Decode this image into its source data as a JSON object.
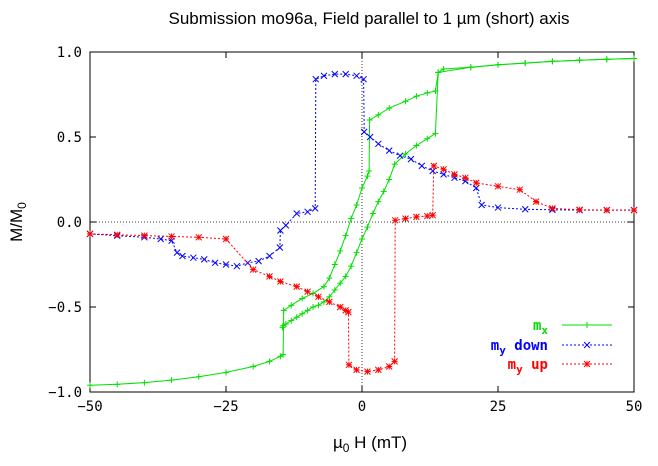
{
  "chart_data": {
    "type": "line",
    "title": "Submission mo96a, Field parallel to 1 µm (short) axis",
    "xlabel_prefix": "µ",
    "xlabel_sub": "0",
    "xlabel_rest": " H (mT)",
    "ylabel_main": "M/M",
    "ylabel_sub": "0",
    "xlim": [
      -50,
      50
    ],
    "ylim": [
      -1.0,
      1.0
    ],
    "xticks": [
      -50,
      -25,
      0,
      25,
      50
    ],
    "xtick_labels": [
      "−50",
      "−25",
      "0",
      "25",
      "50"
    ],
    "yticks": [
      -1.0,
      -0.5,
      0.0,
      0.5,
      1.0
    ],
    "ytick_labels": [
      "−1.0",
      "−0.5",
      "0.0",
      "0.5",
      "1.0"
    ],
    "legend_position": "bottom-right",
    "series": [
      {
        "name": "mx",
        "legend_main": "m",
        "legend_sub": "x",
        "color": "#00e000",
        "marker": "plus",
        "branches": [
          [
            [
              -50,
              -0.96
            ],
            [
              -45,
              -0.955
            ],
            [
              -40,
              -0.945
            ],
            [
              -35,
              -0.93
            ],
            [
              -30,
              -0.91
            ],
            [
              -25,
              -0.885
            ],
            [
              -20,
              -0.85
            ],
            [
              -17,
              -0.82
            ],
            [
              -15,
              -0.79
            ],
            [
              -14.5,
              -0.78
            ],
            [
              -14.4,
              -0.52
            ],
            [
              -13,
              -0.49
            ],
            [
              -11,
              -0.45
            ],
            [
              -9,
              -0.42
            ],
            [
              -7,
              -0.38
            ],
            [
              -6,
              -0.33
            ],
            [
              -5,
              -0.25
            ],
            [
              -4,
              -0.17
            ],
            [
              -3,
              -0.08
            ],
            [
              -2,
              0.02
            ],
            [
              -1,
              0.1
            ],
            [
              0,
              0.2
            ],
            [
              1,
              0.27
            ],
            [
              1.3,
              0.3
            ],
            [
              1.4,
              0.6
            ],
            [
              3,
              0.63
            ],
            [
              5,
              0.67
            ],
            [
              8,
              0.71
            ],
            [
              10,
              0.74
            ],
            [
              12,
              0.76
            ],
            [
              13.5,
              0.77
            ],
            [
              14,
              0.88
            ],
            [
              20,
              0.91
            ],
            [
              25,
              0.925
            ],
            [
              30,
              0.935
            ],
            [
              35,
              0.945
            ],
            [
              40,
              0.952
            ],
            [
              45,
              0.957
            ],
            [
              50,
              0.962
            ]
          ],
          [
            [
              50,
              0.962
            ],
            [
              45,
              0.957
            ],
            [
              40,
              0.952
            ],
            [
              35,
              0.945
            ],
            [
              30,
              0.935
            ],
            [
              25,
              0.925
            ],
            [
              20,
              0.91
            ],
            [
              15,
              0.9
            ],
            [
              14,
              0.88
            ],
            [
              13.5,
              0.52
            ],
            [
              12,
              0.49
            ],
            [
              10,
              0.45
            ],
            [
              8,
              0.4
            ],
            [
              6,
              0.34
            ],
            [
              5,
              0.25
            ],
            [
              4,
              0.18
            ],
            [
              3,
              0.12
            ],
            [
              2,
              0.05
            ],
            [
              1,
              -0.03
            ],
            [
              0,
              -0.1
            ],
            [
              -1,
              -0.18
            ],
            [
              -2,
              -0.26
            ],
            [
              -3,
              -0.32
            ],
            [
              -4,
              -0.36
            ],
            [
              -5,
              -0.4
            ],
            [
              -6,
              -0.44
            ],
            [
              -7,
              -0.47
            ],
            [
              -8,
              -0.49
            ],
            [
              -9,
              -0.5
            ],
            [
              -10,
              -0.52
            ],
            [
              -11,
              -0.54
            ],
            [
              -12,
              -0.56
            ],
            [
              -13,
              -0.58
            ],
            [
              -14,
              -0.6
            ],
            [
              -14.5,
              -0.61
            ],
            [
              -14.6,
              -0.62
            ]
          ]
        ]
      },
      {
        "name": "my down",
        "legend_main": "m",
        "legend_sub": "y",
        "legend_rest": " down",
        "color": "#0000ff",
        "marker": "x",
        "branches": [
          [
            [
              50,
              0.07
            ],
            [
              45,
              0.07
            ],
            [
              40,
              0.07
            ],
            [
              35,
              0.072
            ],
            [
              30,
              0.075
            ],
            [
              25,
              0.085
            ],
            [
              22,
              0.1
            ],
            [
              21,
              0.2
            ],
            [
              19,
              0.24
            ],
            [
              17,
              0.26
            ],
            [
              15,
              0.28
            ],
            [
              13,
              0.3
            ],
            [
              11,
              0.33
            ],
            [
              9,
              0.37
            ],
            [
              7,
              0.39
            ],
            [
              5,
              0.42
            ],
            [
              3,
              0.46
            ],
            [
              1.5,
              0.5
            ],
            [
              0.4,
              0.53
            ],
            [
              0.3,
              0.84
            ],
            [
              -1,
              0.86
            ],
            [
              -3,
              0.87
            ],
            [
              -5,
              0.87
            ],
            [
              -7,
              0.86
            ],
            [
              -8.5,
              0.84
            ],
            [
              -8.6,
              0.08
            ],
            [
              -10,
              0.06
            ],
            [
              -12,
              0.05
            ],
            [
              -14,
              -0.02
            ],
            [
              -15,
              -0.05
            ],
            [
              -15.1,
              -0.15
            ],
            [
              -17,
              -0.2
            ],
            [
              -19,
              -0.23
            ],
            [
              -21,
              -0.24
            ],
            [
              -23,
              -0.26
            ],
            [
              -25,
              -0.25
            ],
            [
              -27,
              -0.24
            ],
            [
              -29,
              -0.22
            ],
            [
              -31,
              -0.21
            ],
            [
              -33,
              -0.2
            ],
            [
              -34,
              -0.18
            ],
            [
              -35,
              -0.11
            ],
            [
              -37,
              -0.1
            ],
            [
              -40,
              -0.09
            ],
            [
              -45,
              -0.08
            ],
            [
              -50,
              -0.07
            ]
          ]
        ]
      },
      {
        "name": "my up",
        "legend_main": "m",
        "legend_sub": "y",
        "legend_rest": " up",
        "color": "#ff0000",
        "marker": "star",
        "branches": [
          [
            [
              -50,
              -0.07
            ],
            [
              -45,
              -0.075
            ],
            [
              -40,
              -0.08
            ],
            [
              -35,
              -0.085
            ],
            [
              -30,
              -0.09
            ],
            [
              -25,
              -0.1
            ],
            [
              -20,
              -0.28
            ],
            [
              -17,
              -0.32
            ],
            [
              -15,
              -0.35
            ],
            [
              -12,
              -0.38
            ],
            [
              -10,
              -0.41
            ],
            [
              -8,
              -0.44
            ],
            [
              -6,
              -0.47
            ],
            [
              -4,
              -0.5
            ],
            [
              -3,
              -0.52
            ],
            [
              -2.5,
              -0.53
            ],
            [
              -2.4,
              -0.84
            ],
            [
              -1,
              -0.87
            ],
            [
              1,
              -0.88
            ],
            [
              3,
              -0.87
            ],
            [
              5,
              -0.85
            ],
            [
              6,
              -0.82
            ],
            [
              6.1,
              0.01
            ],
            [
              8,
              0.02
            ],
            [
              10,
              0.03
            ],
            [
              12,
              0.035
            ],
            [
              13,
              0.04
            ],
            [
              13.2,
              0.33
            ],
            [
              15,
              0.31
            ],
            [
              17,
              0.28
            ],
            [
              19,
              0.26
            ],
            [
              21,
              0.23
            ],
            [
              25,
              0.21
            ],
            [
              29,
              0.19
            ],
            [
              32,
              0.12
            ],
            [
              35,
              0.08
            ],
            [
              40,
              0.072
            ],
            [
              45,
              0.07
            ],
            [
              50,
              0.07
            ]
          ]
        ]
      }
    ]
  }
}
